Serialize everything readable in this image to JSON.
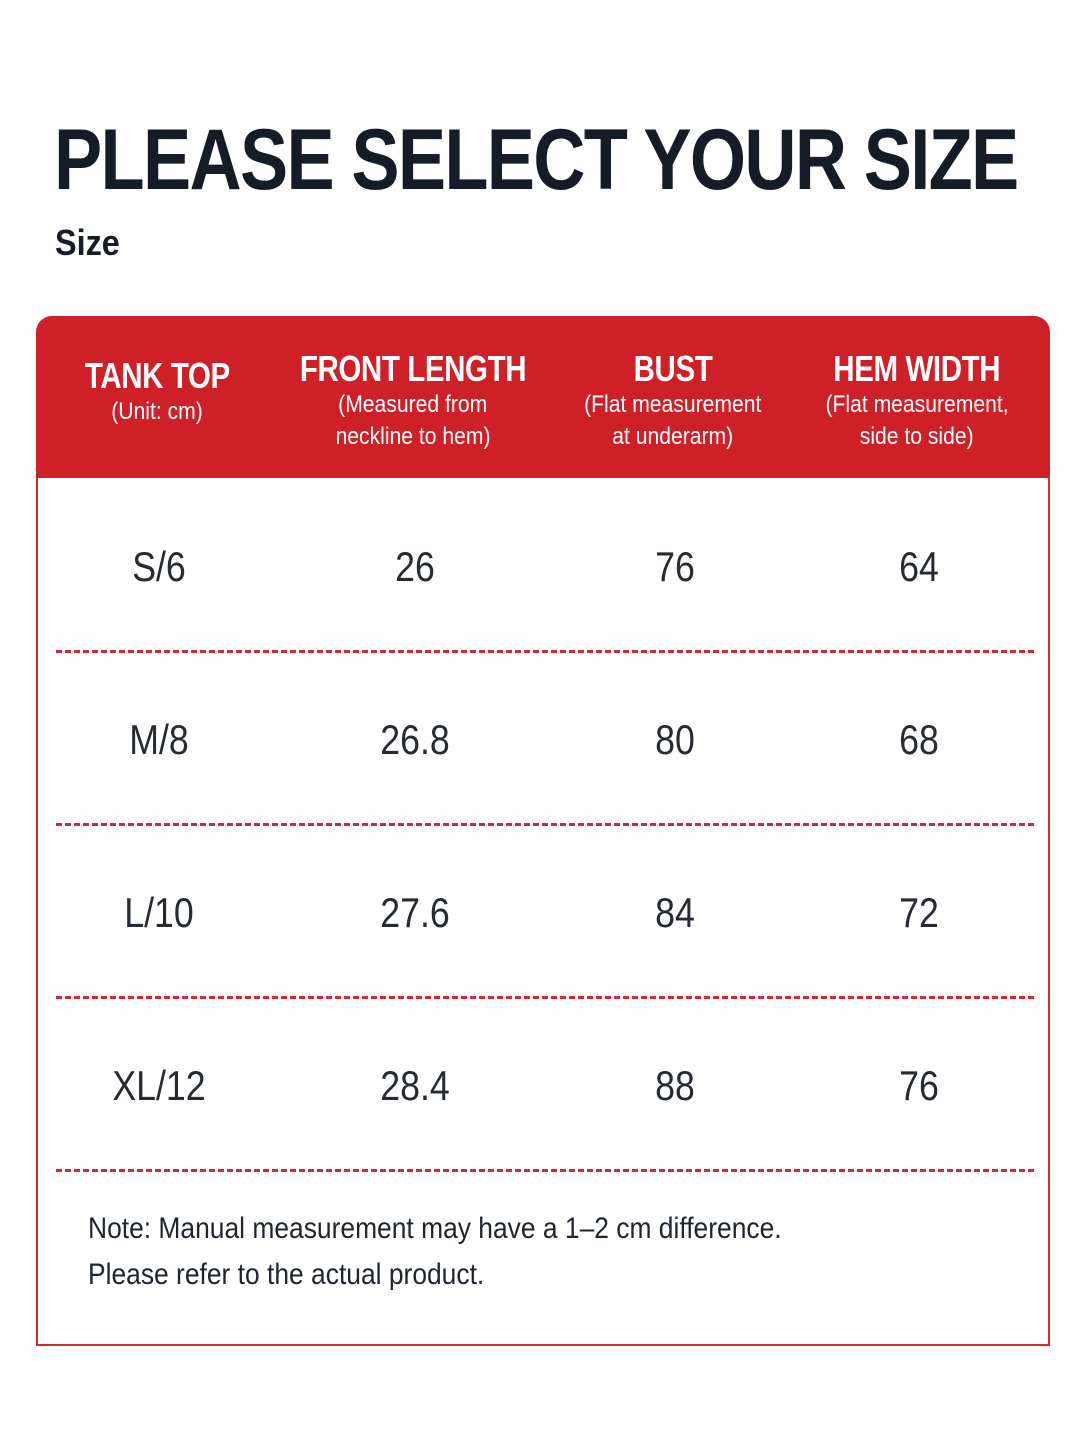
{
  "page": {
    "title": "PLEASE SELECT YOUR SIZE",
    "subtitle": "Size"
  },
  "colors": {
    "accent": "#cf1f27",
    "title_text": "#151c28",
    "body_text": "#262b33",
    "background": "#ffffff"
  },
  "table": {
    "columns": [
      {
        "title": "TANK TOP",
        "sub1": "(Unit: cm)",
        "sub2": ""
      },
      {
        "title": "FRONT LENGTH",
        "sub1": "(Measured from",
        "sub2": "neckline to hem)"
      },
      {
        "title": "BUST",
        "sub1": "(Flat measurement",
        "sub2": "at underarm)"
      },
      {
        "title": "HEM WIDTH",
        "sub1": "(Flat measurement,",
        "sub2": "side to side)"
      }
    ],
    "rows": [
      [
        "S/6",
        "26",
        "76",
        "64"
      ],
      [
        "M/8",
        "26.8",
        "80",
        "68"
      ],
      [
        "L/10",
        "27.6",
        "84",
        "72"
      ],
      [
        "XL/12",
        "28.4",
        "88",
        "76"
      ]
    ]
  },
  "note": {
    "line1": "Note: Manual measurement may have a 1–2 cm difference.",
    "line2": "Please refer to the actual product."
  }
}
